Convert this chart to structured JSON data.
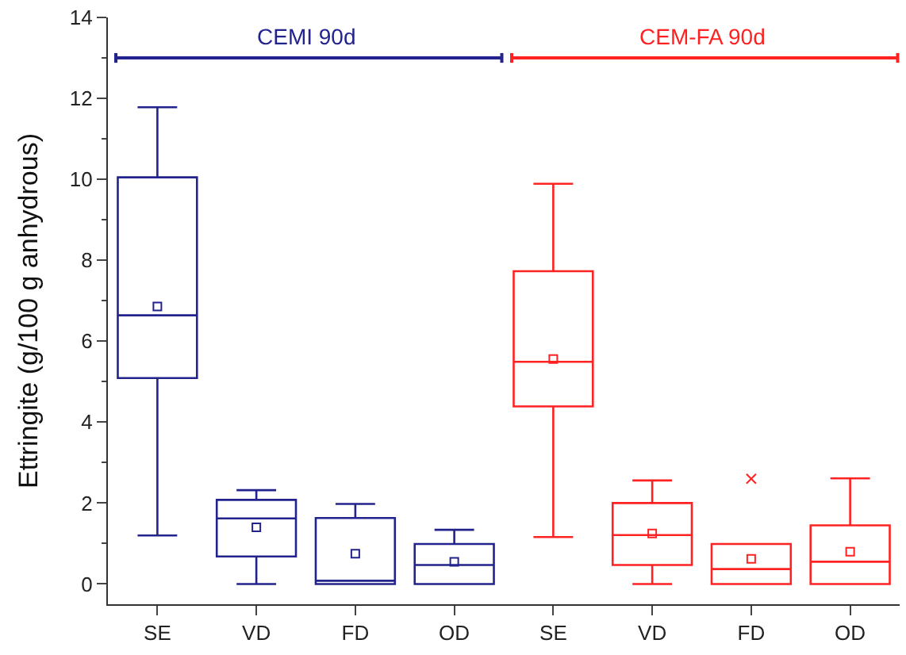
{
  "chart_data": {
    "type": "box",
    "ylabel": "Ettringite (g/100 g anhydrous)",
    "categories": [
      "SE",
      "VD",
      "FD",
      "OD",
      "SE",
      "VD",
      "FD",
      "OD"
    ],
    "ref_lines": [
      {
        "axis": "y",
        "value": 13,
        "label": "CEMI 90d",
        "color": "#23238e"
      },
      {
        "axis": "y",
        "value": 13,
        "label": "CEM-FA 90d",
        "color": "#ff2222"
      }
    ],
    "ylim": [
      -0.5,
      14
    ],
    "yticks": [
      0,
      2,
      4,
      6,
      8,
      10,
      12,
      14
    ],
    "marker": "square",
    "series": [
      {
        "color": "#23238e",
        "boxes": [
          {
            "low": 1.2,
            "q1": 5.09,
            "median": 6.64,
            "q3": 10.05,
            "high": 11.78,
            "mean": 6.86
          },
          {
            "low": 0,
            "q1": 0.68,
            "median": 1.62,
            "q3": 2.08,
            "high": 2.32,
            "mean": 1.4
          },
          {
            "low": 0,
            "q1": 0,
            "median": 0.08,
            "q3": 1.63,
            "high": 1.98,
            "mean": 0.75
          },
          {
            "low": 0,
            "q1": 0,
            "median": 0.47,
            "q3": 0.99,
            "high": 1.34,
            "mean": 0.55
          },
          null,
          null,
          null,
          null
        ]
      },
      {
        "color": "#ff2222",
        "boxes": [
          null,
          null,
          null,
          null,
          {
            "low": 1.16,
            "q1": 4.39,
            "median": 5.49,
            "q3": 7.73,
            "high": 9.89,
            "mean": 5.56
          },
          {
            "low": 0,
            "q1": 0.47,
            "median": 1.21,
            "q3": 2.0,
            "high": 2.56,
            "mean": 1.25
          },
          {
            "low": 0,
            "q1": 0,
            "median": 0.37,
            "q3": 0.99,
            "high": 0.99,
            "mean": 0.62,
            "outliers": [
              2.6
            ]
          },
          {
            "low": 0,
            "q1": 0,
            "median": 0.55,
            "q3": 1.45,
            "high": 2.61,
            "mean": 0.8
          }
        ]
      }
    ]
  }
}
